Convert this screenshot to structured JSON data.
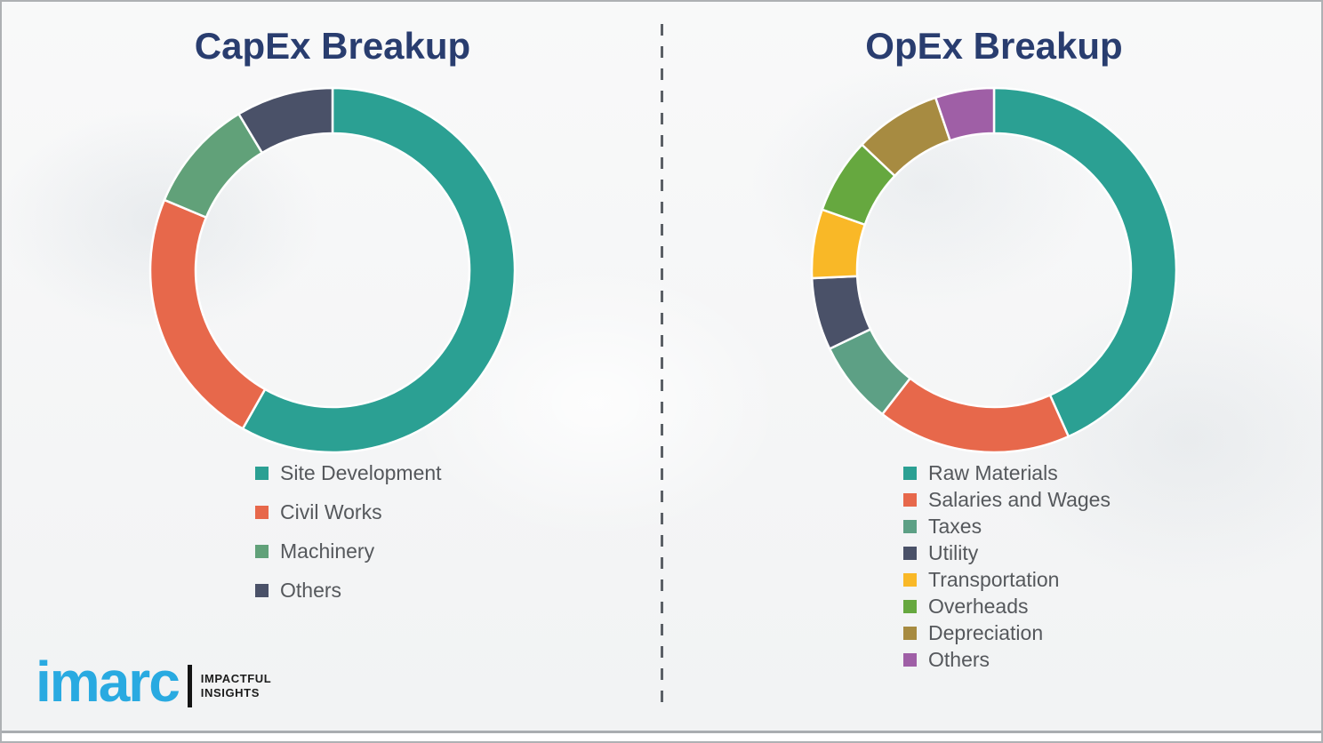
{
  "frame": {
    "background_color": "#f2f3f4",
    "bottom_rule_color": "#a9adb0"
  },
  "chart_data": [
    {
      "type": "donut",
      "title": "CapEx Breakup",
      "legend_position": "below-chart-left",
      "segments": [
        {
          "label": "Site Development",
          "value": 58.2,
          "color": "#2ba093"
        },
        {
          "label": "Civil Works",
          "value": 23.1,
          "color": "#e7684b"
        },
        {
          "label": "Machinery",
          "value": 10.1,
          "color": "#61a179"
        },
        {
          "label": "Others",
          "value": 8.6,
          "color": "#4a5168"
        }
      ]
    },
    {
      "type": "donut",
      "title": "OpEx Breakup",
      "legend_position": "below-chart-left",
      "segments": [
        {
          "label": "Raw Materials",
          "value": 43.3,
          "color": "#2ba093"
        },
        {
          "label": "Salaries and Wages",
          "value": 17.2,
          "color": "#e7684b"
        },
        {
          "label": "Taxes",
          "value": 7.4,
          "color": "#5da085"
        },
        {
          "label": "Utility",
          "value": 6.4,
          "color": "#4a5168"
        },
        {
          "label": "Transportation",
          "value": 6.1,
          "color": "#f9b827"
        },
        {
          "label": "Overheads",
          "value": 6.7,
          "color": "#66a83f"
        },
        {
          "label": "Depreciation",
          "value": 7.7,
          "color": "#a78b41"
        },
        {
          "label": "Others",
          "value": 5.2,
          "color": "#9f5fa6"
        }
      ]
    }
  ],
  "divider": {
    "orientation": "vertical",
    "style": "dashed",
    "color": "#5b6066"
  },
  "logo": {
    "brand": "imarc",
    "tagline": [
      "IMPACTFUL",
      "INSIGHTS"
    ],
    "brand_color": "#29aae1"
  }
}
